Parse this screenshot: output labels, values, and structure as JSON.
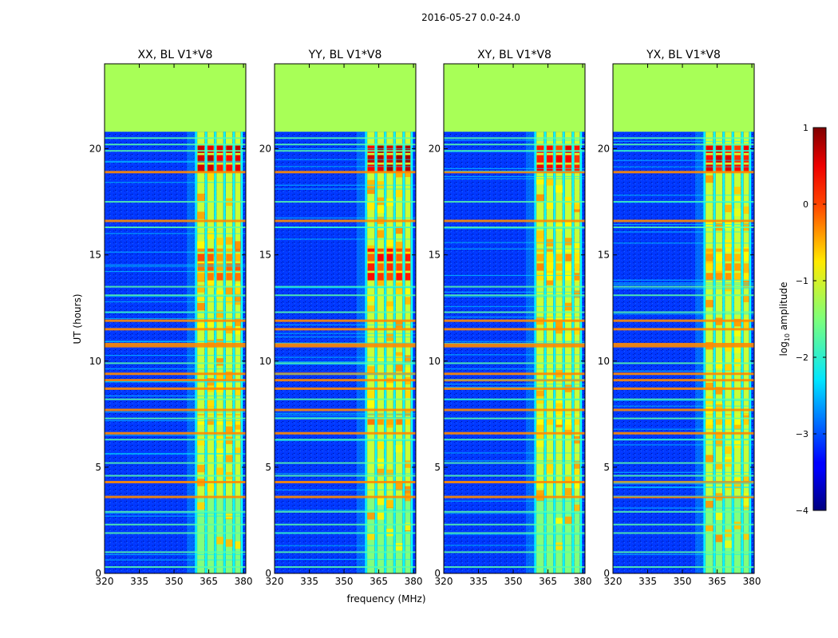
{
  "chart_data": {
    "type": "heatmap",
    "suptitle": "2016-05-27 0.0-24.0",
    "xlabel": "frequency (MHz)",
    "ylabel": "UT (hours)",
    "xlim": [
      320,
      381
    ],
    "ylim": [
      0,
      24
    ],
    "xticks": [
      320,
      335,
      350,
      365,
      380
    ],
    "yticks": [
      0,
      5,
      10,
      15,
      20
    ],
    "data_end_hour": 20.8,
    "flagged_value": -1.3,
    "band": {
      "start_mhz": 359.5,
      "end_mhz": 379.5,
      "comb_lines_mhz": [
        359.5,
        363.8,
        367.8,
        371.8,
        375.8,
        379.3
      ]
    },
    "rfi_hours": {
      "hot": [
        18.9,
        16.6,
        11.9,
        11.5,
        10.8,
        10.7,
        9.4,
        9.1,
        8.7,
        7.7,
        6.6,
        4.3,
        3.6
      ],
      "warm": [
        20.5,
        20.2,
        19.9,
        17.5,
        16.3,
        13.5,
        13.1,
        12.3,
        9.9,
        8.2,
        7.3,
        6.3,
        5.2,
        4.6,
        2.9,
        2.3,
        1.9,
        1.0,
        0.3
      ]
    },
    "panels": [
      {
        "title": "XX, BL V1*V8",
        "bursts": [
          [
            18.9,
            20.2,
            0.8
          ],
          [
            13.8,
            15.3,
            0.0
          ],
          [
            7.0,
            7.5,
            -0.3
          ]
        ]
      },
      {
        "title": "YY, BL V1*V8",
        "bursts": [
          [
            18.9,
            20.2,
            0.9
          ],
          [
            13.8,
            15.3,
            0.4
          ],
          [
            7.0,
            7.5,
            -0.2
          ]
        ]
      },
      {
        "title": "XY, BL V1*V8",
        "bursts": [
          [
            18.9,
            20.2,
            0.6
          ],
          [
            13.8,
            15.3,
            -0.3
          ],
          [
            7.0,
            7.5,
            -0.5
          ]
        ]
      },
      {
        "title": "YX, BL V1*V8",
        "bursts": [
          [
            18.9,
            20.2,
            0.6
          ],
          [
            13.8,
            15.3,
            -0.3
          ],
          [
            7.0,
            7.5,
            -0.5
          ]
        ]
      }
    ],
    "colorbar": {
      "label": "log10 amplitude",
      "label_base": "log",
      "label_sub": "10",
      "label_rest": " amplitude",
      "min": -4,
      "max": 1,
      "ticks": [
        "1",
        "0",
        "−1",
        "−2",
        "−3",
        "−4"
      ]
    }
  }
}
